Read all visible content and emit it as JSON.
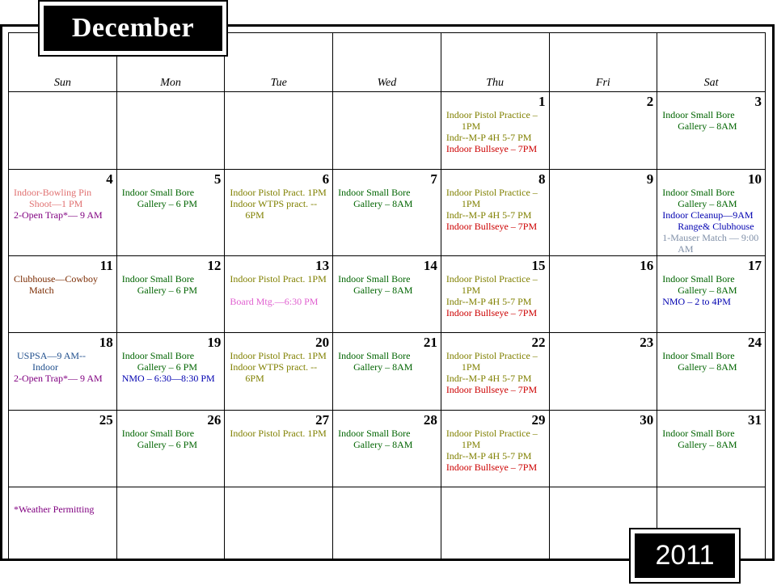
{
  "month": "December",
  "year": "2011",
  "weekdays": [
    "Sun",
    "Mon",
    "Tue",
    "Wed",
    "Thu",
    "Fri",
    "Sat"
  ],
  "days": {
    "d1": {
      "num": "1",
      "events": [
        "Indoor Pistol Practice – 1PM",
        "Indr--M-P 4H 5-7 PM",
        "Indoor Bullseye – 7PM"
      ]
    },
    "d2": {
      "num": "2"
    },
    "d3": {
      "num": "3",
      "events": [
        "Indoor Small Bore Gallery – 8AM"
      ]
    },
    "d4": {
      "num": "4",
      "events": [
        "Indoor-Bowling Pin Shoot—1 PM",
        "2-Open Trap*— 9 AM"
      ]
    },
    "d5": {
      "num": "5",
      "events": [
        "Indoor Small Bore Gallery – 6 PM"
      ]
    },
    "d6": {
      "num": "6",
      "events": [
        "Indoor Pistol Pract. 1PM",
        "Indoor WTPS pract. -- 6PM"
      ]
    },
    "d7": {
      "num": "7",
      "events": [
        "Indoor Small Bore Gallery – 8AM"
      ]
    },
    "d8": {
      "num": "8",
      "events": [
        "Indoor Pistol Practice – 1PM",
        "Indr--M-P 4H 5-7 PM",
        "Indoor Bullseye – 7PM"
      ]
    },
    "d9": {
      "num": "9"
    },
    "d10": {
      "num": "10",
      "events": [
        "Indoor Small Bore Gallery – 8AM",
        "Indoor Cleanup—9AM Range& Clubhouse",
        "1-Mauser Match — 9:00 AM"
      ]
    },
    "d11": {
      "num": "11",
      "events": [
        "Clubhouse—Cowboy Match"
      ]
    },
    "d12": {
      "num": "12",
      "events": [
        "Indoor Small Bore Gallery – 6 PM"
      ]
    },
    "d13": {
      "num": "13",
      "events": [
        "Indoor Pistol Pract. 1PM",
        "Board Mtg.—6:30 PM"
      ]
    },
    "d14": {
      "num": "14",
      "events": [
        "Indoor Small Bore Gallery – 8AM"
      ]
    },
    "d15": {
      "num": "15",
      "events": [
        "Indoor Pistol Practice – 1PM",
        "Indr--M-P 4H 5-7 PM",
        "Indoor Bullseye – 7PM"
      ]
    },
    "d16": {
      "num": "16"
    },
    "d17": {
      "num": "17",
      "events": [
        "Indoor Small Bore Gallery – 8AM",
        "NMO – 2 to 4PM"
      ]
    },
    "d18": {
      "num": "18",
      "events": [
        "USPSA—9 AM-- Indoor",
        "2-Open Trap*— 9 AM"
      ]
    },
    "d19": {
      "num": "19",
      "events": [
        "Indoor Small Bore Gallery – 6 PM",
        "NMO – 6:30—8:30 PM"
      ]
    },
    "d20": {
      "num": "20",
      "events": [
        "Indoor Pistol Pract. 1PM",
        "Indoor WTPS pract. -- 6PM"
      ]
    },
    "d21": {
      "num": "21",
      "events": [
        "Indoor Small Bore Gallery – 8AM"
      ]
    },
    "d22": {
      "num": "22",
      "events": [
        "Indoor Pistol Practice – 1PM",
        "Indr--M-P 4H 5-7 PM",
        "Indoor Bullseye – 7PM"
      ]
    },
    "d23": {
      "num": "23"
    },
    "d24": {
      "num": "24",
      "events": [
        "Indoor Small Bore Gallery – 8AM"
      ]
    },
    "d25": {
      "num": "25"
    },
    "d26": {
      "num": "26",
      "events": [
        "Indoor Small Bore Gallery – 6 PM"
      ]
    },
    "d27": {
      "num": "27",
      "events": [
        "Indoor Pistol Pract. 1PM"
      ]
    },
    "d28": {
      "num": "28",
      "events": [
        "Indoor Small Bore Gallery – 8AM"
      ]
    },
    "d29": {
      "num": "29",
      "events": [
        "Indoor Pistol Practice – 1PM",
        "Indr--M-P 4H 5-7 PM",
        "Indoor Bullseye – 7PM"
      ]
    },
    "d30": {
      "num": "30"
    },
    "d31": {
      "num": "31",
      "events": [
        "Indoor Small Bore Gallery – 8AM"
      ]
    }
  },
  "footnote": "*Weather Permitting",
  "colors": {
    "pistol_practice": "#808000",
    "small_bore": "#006400",
    "bullseye": "#cc0000",
    "bowling_pin": "#e07070",
    "open_trap": "#800080",
    "nmo_cleanup": "#0000b0",
    "mauser": "#8090a8",
    "cowboy": "#7a2a00",
    "board_mtg": "#e060d0",
    "uspsa": "#1f4e8c"
  }
}
